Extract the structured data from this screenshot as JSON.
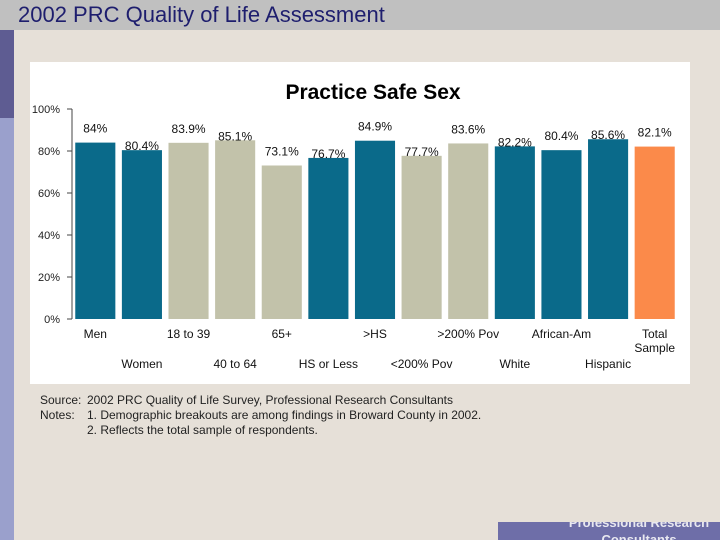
{
  "header": {
    "title": "2002 PRC Quality of Life Assessment"
  },
  "chart_data": {
    "type": "bar",
    "title": "Practice Safe Sex",
    "xlabel": "",
    "ylabel": "",
    "ylim": [
      0,
      100
    ],
    "y_ticks": [
      "0%",
      "20%",
      "40%",
      "60%",
      "80%",
      "100%"
    ],
    "categories": [
      "Men",
      "Women",
      "18 to 39",
      "40 to 64",
      "65+",
      "HS or Less",
      ">HS",
      "<200% Pov",
      ">200% Pov",
      "White",
      "African-Am",
      "Hispanic",
      "Total Sample"
    ],
    "values": [
      84,
      80.4,
      83.9,
      85.1,
      73.1,
      76.7,
      84.9,
      77.7,
      83.6,
      82.2,
      80.4,
      85.6,
      82.1
    ],
    "value_labels": [
      "84%",
      "80.4%",
      "83.9%",
      "85.1%",
      "73.1%",
      "76.7%",
      "84.9%",
      "77.7%",
      "83.6%",
      "82.2%",
      "80.4%",
      "85.6%",
      "82.1%"
    ],
    "bar_colors": [
      "#0a6a8a",
      "#0a6a8a",
      "#c2c2aa",
      "#c2c2aa",
      "#c2c2aa",
      "#0a6a8a",
      "#0a6a8a",
      "#c2c2aa",
      "#c2c2aa",
      "#0a6a8a",
      "#0a6a8a",
      "#0a6a8a",
      "#fb8a4a"
    ]
  },
  "notes": {
    "source_label": "Source:",
    "source_text": "2002 PRC Quality of Life Survey, Professional Research Consultants",
    "notes_label": "Notes:",
    "note1": "1. Demographic breakouts are among findings in Broward County in 2002.",
    "note2": "2. Reflects the total sample of respondents."
  },
  "footer": {
    "text": "Professional Research Consultants"
  }
}
